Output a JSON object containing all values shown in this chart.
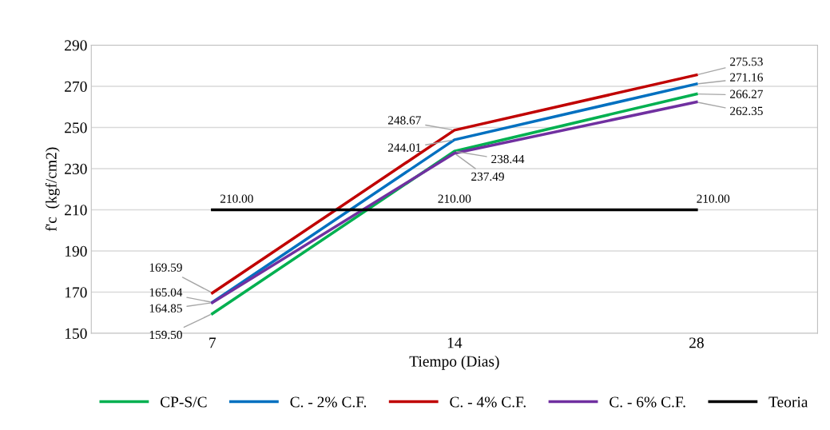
{
  "chart_data": {
    "type": "line",
    "xlabel": "Tiempo (Dias)",
    "ylabel": "f'c  (kgf/cm2)",
    "categories": [
      "7",
      "14",
      "28"
    ],
    "series": [
      {
        "name": "CP-S/C",
        "color": "#00b050",
        "values": [
          159.5,
          238.44,
          266.27
        ],
        "value_labels": [
          "159.50",
          "238.44",
          "266.27"
        ]
      },
      {
        "name": "C. - 2% C.F.",
        "color": "#0070c0",
        "values": [
          165.04,
          244.01,
          271.16
        ],
        "value_labels": [
          "165.04",
          "244.01",
          "271.16"
        ]
      },
      {
        "name": "C. - 4% C.F.",
        "color": "#c00000",
        "values": [
          169.59,
          248.67,
          275.53
        ],
        "value_labels": [
          "169.59",
          "248.67",
          "275.53"
        ]
      },
      {
        "name": "C. - 6% C.F.",
        "color": "#7030a0",
        "values": [
          164.85,
          237.49,
          262.35
        ],
        "value_labels": [
          "164.85",
          "237.49",
          "262.35"
        ]
      },
      {
        "name": "Teoria",
        "color": "#000000",
        "values": [
          210.0,
          210.0,
          210.0
        ],
        "value_labels": [
          "210.00",
          "210.00",
          "210.00"
        ]
      }
    ],
    "ylim": [
      150,
      290
    ],
    "yticks": [
      150,
      170,
      190,
      210,
      230,
      250,
      270,
      290
    ],
    "grid": "y",
    "legend": "bottom",
    "marker": "none",
    "line_style": "solid"
  }
}
